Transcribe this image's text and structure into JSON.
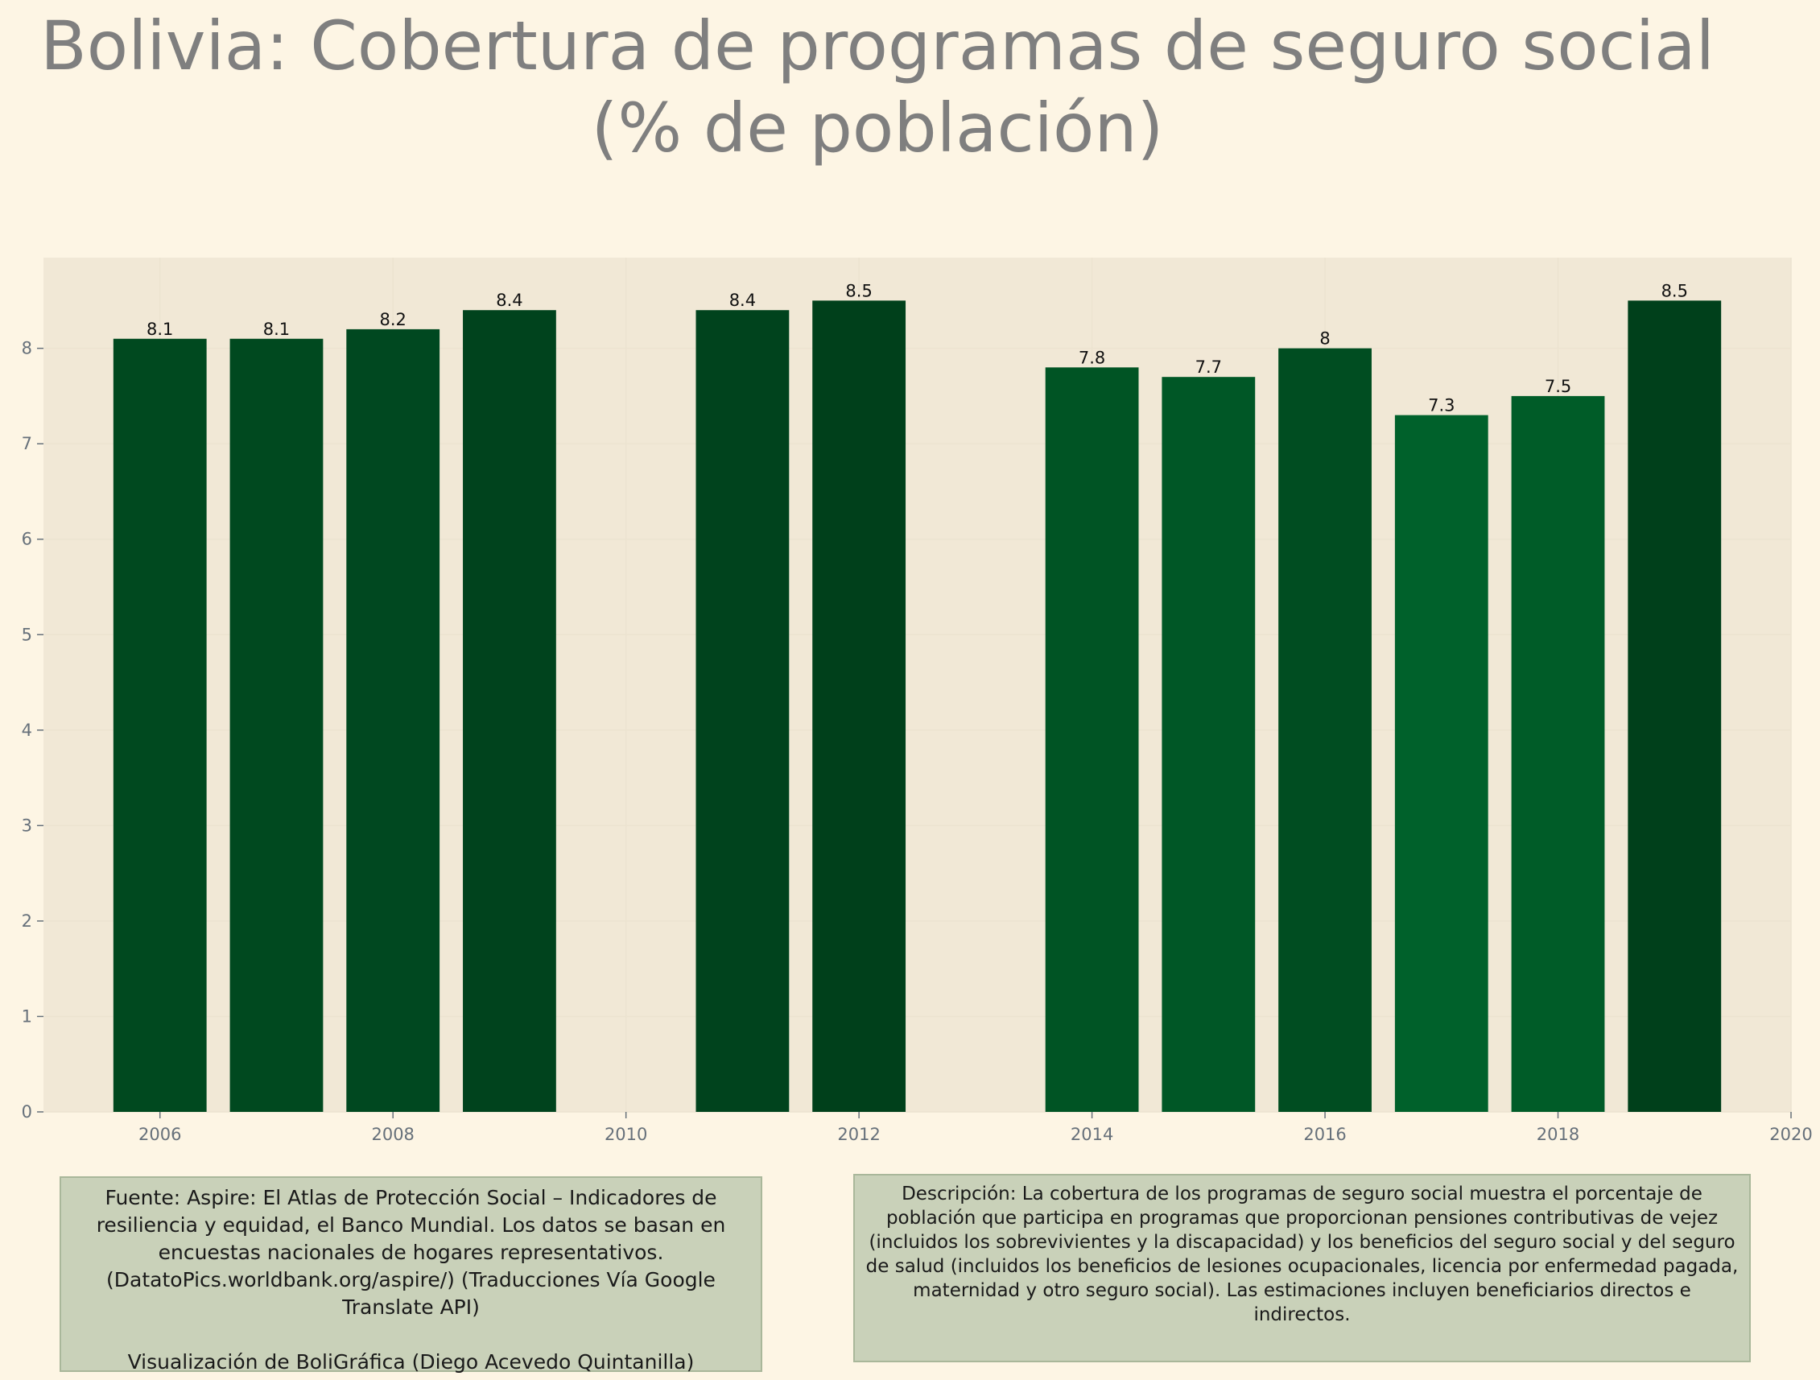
{
  "title": {
    "line1": "Bolivia:  Cobertura de programas de seguro social",
    "line2": "(% de población)"
  },
  "colors": {
    "background": "#fdf5e4",
    "plot_background": "#f1e8d6",
    "title": "#7f7f7f",
    "annotation_box": "#c9d1b9"
  },
  "chart_data": {
    "type": "bar",
    "title": "Bolivia:  Cobertura de programas de seguro social (% de población)",
    "xlabel": "",
    "ylabel": "",
    "xlim": [
      2005,
      2020
    ],
    "ylim": [
      0,
      8.95
    ],
    "xticks": [
      2006,
      2008,
      2010,
      2012,
      2014,
      2016,
      2018,
      2020
    ],
    "yticks": [
      0,
      1,
      2,
      3,
      4,
      5,
      6,
      7,
      8
    ],
    "grid": true,
    "legend": "none",
    "points": [
      {
        "x": 2006,
        "value": 8.1,
        "label": "8.1",
        "color": "#00491f"
      },
      {
        "x": 2007,
        "value": 8.1,
        "label": "8.1",
        "color": "#00491f"
      },
      {
        "x": 2008,
        "value": 8.2,
        "label": "8.2",
        "color": "#004820"
      },
      {
        "x": 2009,
        "value": 8.4,
        "label": "8.4",
        "color": "#00431d"
      },
      {
        "x": 2011,
        "value": 8.4,
        "label": "8.4",
        "color": "#00431d"
      },
      {
        "x": 2012,
        "value": 8.5,
        "label": "8.5",
        "color": "#00401b"
      },
      {
        "x": 2014,
        "value": 7.8,
        "label": "7.8",
        "color": "#005424"
      },
      {
        "x": 2015,
        "value": 7.7,
        "label": "7.7",
        "color": "#005726"
      },
      {
        "x": 2016,
        "value": 8.0,
        "label": "8",
        "color": "#004d21"
      },
      {
        "x": 2017,
        "value": 7.3,
        "label": "7.3",
        "color": "#00612b"
      },
      {
        "x": 2018,
        "value": 7.5,
        "label": "7.5",
        "color": "#005c28"
      },
      {
        "x": 2019,
        "value": 8.5,
        "label": "8.5",
        "color": "#00401b"
      }
    ]
  },
  "source": {
    "text": "Fuente: Aspire: El Atlas de Protección Social – Indicadores de resiliencia y equidad, el Banco Mundial. Los datos se basan en encuestas nacionales de hogares representativos. (DatatoPics.worldbank.org/aspire/) (Traducciones Vía Google Translate API)",
    "credit": "Visualización de BoliGráfica (Diego Acevedo Quintanilla)"
  },
  "description": "Descripción: La cobertura de los programas de seguro social muestra el porcentaje de población que participa en programas que proporcionan pensiones contributivas de vejez (incluidos los sobrevivientes y la discapacidad) y los beneficios del seguro social y del seguro de salud (incluidos los beneficios de lesiones ocupacionales, licencia por enfermedad pagada, maternidad y otro seguro social). Las estimaciones incluyen beneficiarios directos e indirectos."
}
